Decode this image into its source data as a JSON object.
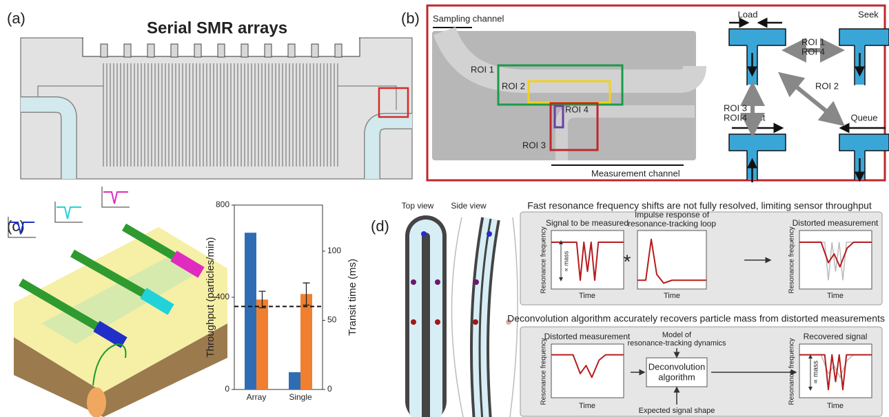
{
  "panel_a": {
    "label": "(a)",
    "title": "Serial SMR arrays"
  },
  "panel_b": {
    "label": "(b)",
    "sampling_channel": "Sampling channel",
    "measurement_channel": "Measurement channel",
    "rois": [
      "ROI 1",
      "ROI 2",
      "ROI 3",
      "ROI 4"
    ],
    "states": [
      "Load",
      "Seek",
      "Reject",
      "Queue"
    ],
    "transitions": [
      [
        "ROI 1",
        "ROI 4"
      ],
      [
        "ROI 3",
        "ROI 4"
      ],
      [
        "ROI 2"
      ]
    ]
  },
  "panel_c": {
    "label": "(c)"
  },
  "panel_d": {
    "label": "(d)",
    "top_view": "Top view",
    "side_view": "Side view",
    "heading_1": "Fast resonance frequency shifts are not fully resolved, limiting sensor throughput",
    "convolution": {
      "signal": "Signal to be measured",
      "impulse": [
        "Impulse response of",
        "resonance-tracking loop"
      ],
      "operator": "*",
      "distorted": "Distorted measurement"
    },
    "heading_2": "Deconvolution algorithm accurately recovers particle mass from distorted measurements",
    "deconvolution": {
      "distorted": "Distorted measurement",
      "model": [
        "Model of",
        "resonance-tracking dynamics"
      ],
      "algorithm": [
        "Deconvolution",
        "algorithm"
      ],
      "expected": "Expected signal shape",
      "recovered": "Recovered signal"
    },
    "y_labels": [
      "Resonance frequency",
      "Resonance frequency",
      "Resonance frequency",
      "Resonance frequency"
    ],
    "x_labels": [
      "Time",
      "Time",
      "Time",
      "Time",
      "Time"
    ],
    "mass_labels": [
      "∝ mass",
      "∝ mass"
    ]
  },
  "chart_data": {
    "type": "bar",
    "categories": [
      "Array",
      "Single"
    ],
    "ylabel": "Throughput (particles/min)",
    "y2label": "Transit time (ms)",
    "ylim": [
      0,
      800
    ],
    "yticks": [
      0,
      400,
      800
    ],
    "y2lim": [
      0,
      133.3
    ],
    "y2ticks": [
      0,
      50,
      100
    ],
    "series": [
      {
        "color": "#2e6db4",
        "values": [
          680,
          75
        ]
      },
      {
        "color": "#f07f2f",
        "axis": "y2",
        "values": [
          65,
          69
        ],
        "errors": [
          6,
          8
        ]
      }
    ],
    "reference_line": {
      "axis": "y2",
      "value": 60
    }
  }
}
